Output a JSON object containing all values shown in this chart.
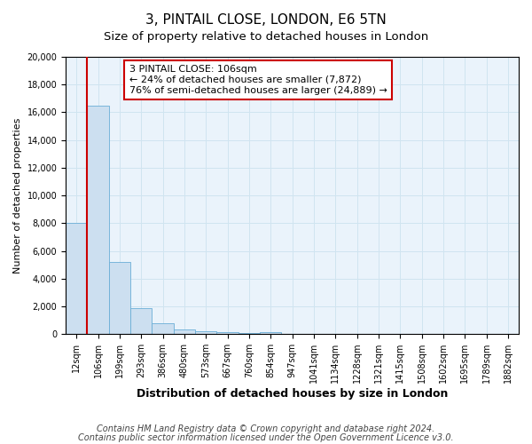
{
  "title": "3, PINTAIL CLOSE, LONDON, E6 5TN",
  "subtitle": "Size of property relative to detached houses in London",
  "xlabel": "Distribution of detached houses by size in London",
  "ylabel": "Number of detached properties",
  "categories": [
    "12sqm",
    "106sqm",
    "199sqm",
    "293sqm",
    "386sqm",
    "480sqm",
    "573sqm",
    "667sqm",
    "760sqm",
    "854sqm",
    "947sqm",
    "1041sqm",
    "1134sqm",
    "1228sqm",
    "1321sqm",
    "1415sqm",
    "1508sqm",
    "1602sqm",
    "1695sqm",
    "1789sqm",
    "1882sqm"
  ],
  "values": [
    8050,
    16500,
    5200,
    1900,
    800,
    350,
    210,
    150,
    100,
    150,
    0,
    0,
    0,
    0,
    0,
    0,
    0,
    0,
    0,
    0,
    0
  ],
  "bar_color": "#ccdff0",
  "bar_edge_color": "#6aaed6",
  "red_line_index": 1,
  "annotation_line1": "3 PINTAIL CLOSE: 106sqm",
  "annotation_line2": "← 24% of detached houses are smaller (7,872)",
  "annotation_line3": "76% of semi-detached houses are larger (24,889) →",
  "annotation_box_color": "#ffffff",
  "annotation_box_edge": "#cc0000",
  "red_line_color": "#cc0000",
  "ylim": [
    0,
    20000
  ],
  "yticks": [
    0,
    2000,
    4000,
    6000,
    8000,
    10000,
    12000,
    14000,
    16000,
    18000,
    20000
  ],
  "grid_color": "#d0e4f0",
  "footnote1": "Contains HM Land Registry data © Crown copyright and database right 2024.",
  "footnote2": "Contains public sector information licensed under the Open Government Licence v3.0.",
  "bg_color": "#eaf3fb",
  "title_fontsize": 11,
  "subtitle_fontsize": 9.5,
  "xlabel_fontsize": 9,
  "ylabel_fontsize": 8,
  "tick_fontsize": 7,
  "annotation_fontsize": 8,
  "footnote_fontsize": 7
}
